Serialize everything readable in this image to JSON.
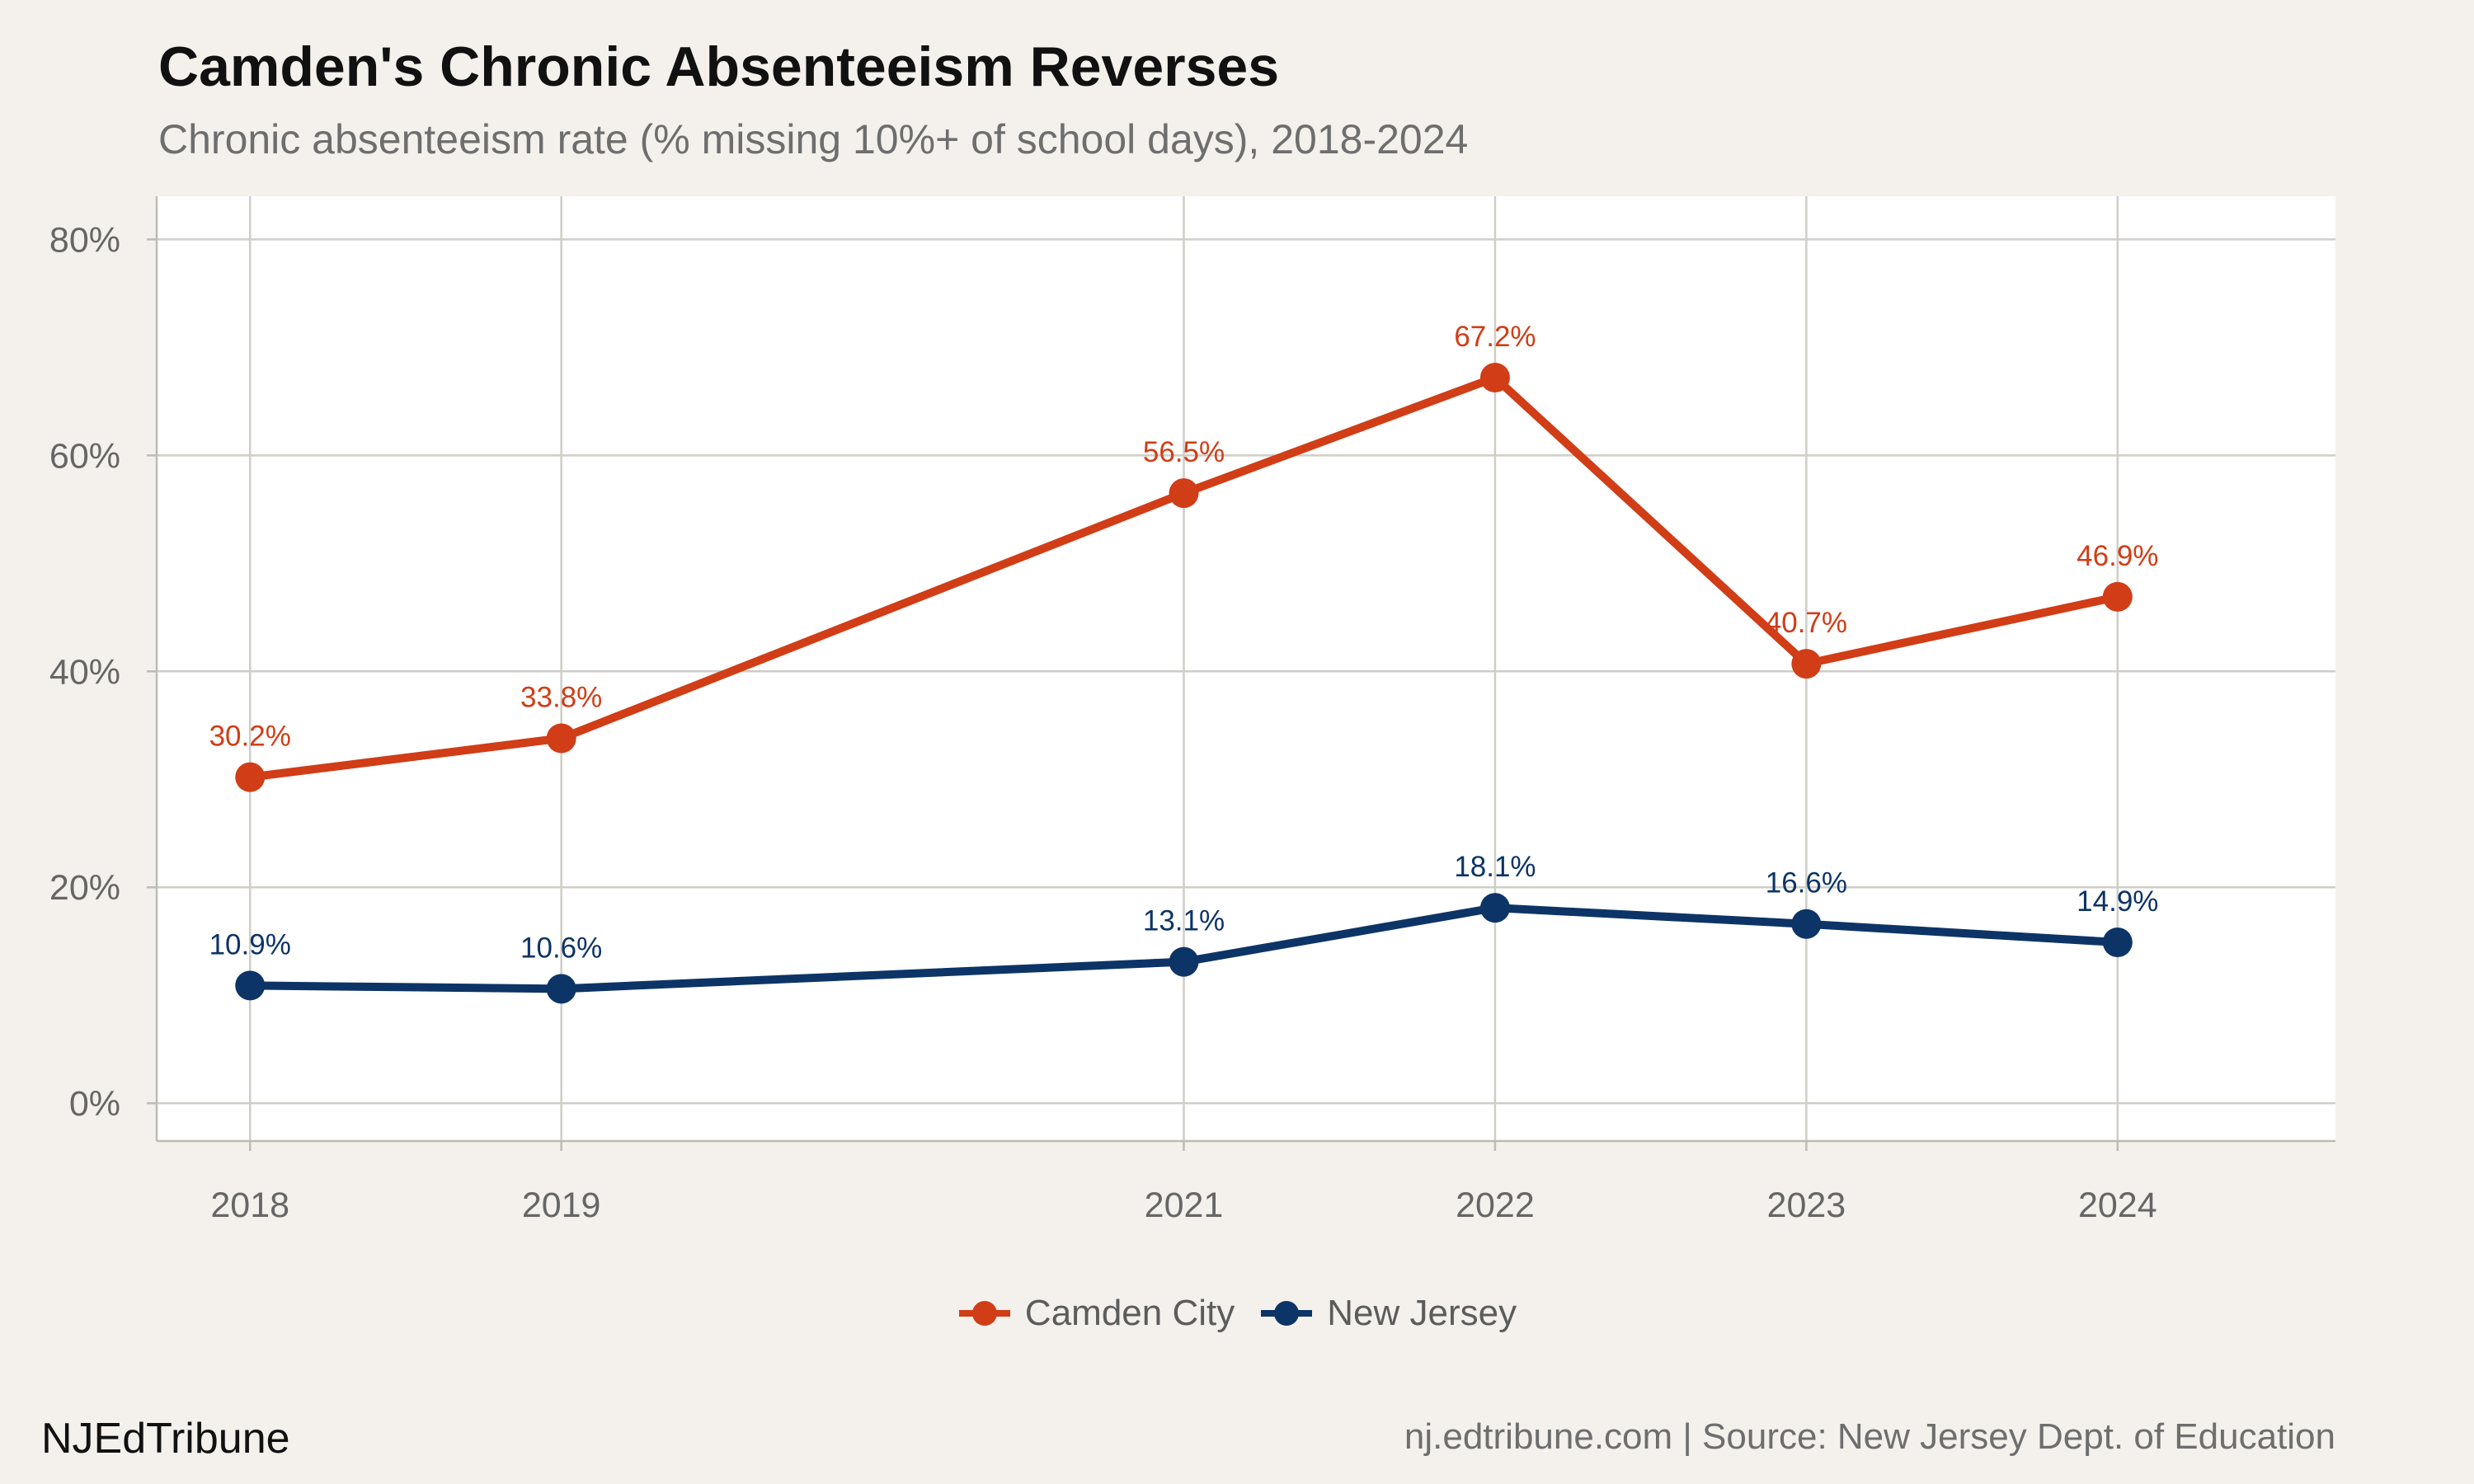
{
  "header": {
    "title": "Camden's Chronic Absenteeism Reverses",
    "subtitle": "Chronic absenteeism rate (% missing 10%+ of school days), 2018-2024"
  },
  "footer": {
    "brand": "NJEdTribune",
    "source": "nj.edtribune.com | Source: New Jersey Dept. of Education"
  },
  "chart_data": {
    "type": "line",
    "x": [
      2018,
      2019,
      2021,
      2022,
      2023,
      2024
    ],
    "x_tick_labels": [
      "2018",
      "2019",
      "2021",
      "2022",
      "2023",
      "2024"
    ],
    "xlim": [
      2017.7,
      2024.7
    ],
    "ylim": [
      -3.5,
      84
    ],
    "y_ticks": [
      0,
      20,
      40,
      60,
      80
    ],
    "y_tick_labels": [
      "0%",
      "20%",
      "40%",
      "60%",
      "80%"
    ],
    "grid": true,
    "legend_position": "bottom",
    "series": [
      {
        "name": "Camden City",
        "color": "#d13d16",
        "values": [
          30.2,
          33.8,
          56.5,
          67.2,
          40.7,
          46.9
        ],
        "labels": [
          "30.2%",
          "33.8%",
          "56.5%",
          "67.2%",
          "40.7%",
          "46.9%"
        ]
      },
      {
        "name": "New Jersey",
        "color": "#0d3466",
        "values": [
          10.9,
          10.6,
          13.1,
          18.1,
          16.6,
          14.9
        ],
        "labels": [
          "10.9%",
          "10.6%",
          "13.1%",
          "18.1%",
          "16.6%",
          "14.9%"
        ]
      }
    ]
  }
}
